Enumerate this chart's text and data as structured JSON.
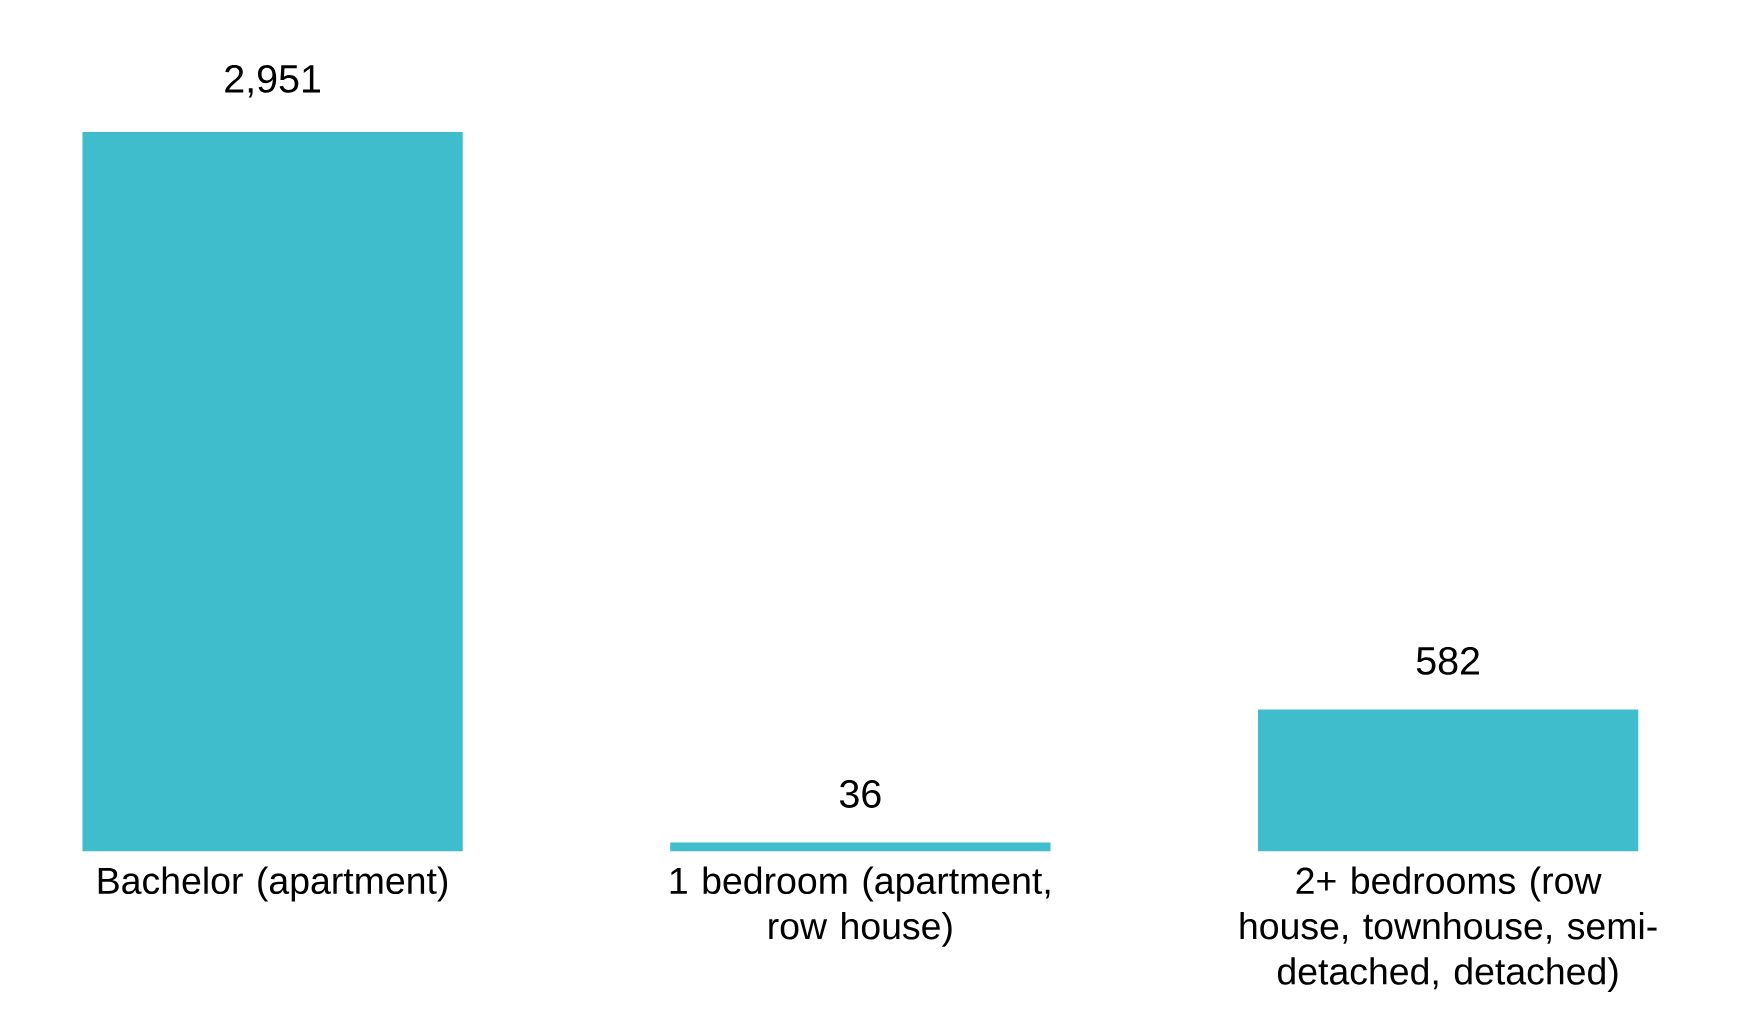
{
  "chart_data": {
    "type": "bar",
    "categories": [
      "Bachelor (apartment)",
      "1 bedroom (apartment, row house)",
      "2+ bedrooms (row house, townhouse, semi-detached, detached)"
    ],
    "values": [
      2951,
      36,
      582
    ],
    "value_labels": [
      "2,951",
      "36",
      "582"
    ],
    "color": "#40bdcc"
  }
}
